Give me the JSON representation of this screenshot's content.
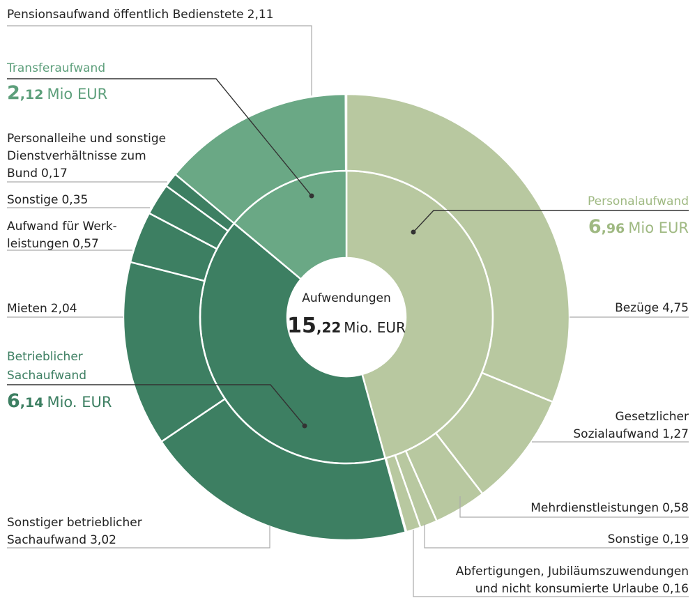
{
  "chart_data": {
    "type": "sunburst",
    "center_label": "Aufwendungen",
    "total": 15.22,
    "total_label": "15,22",
    "total_unit": "Mio. EUR",
    "groups": [
      {
        "name_lines": [
          "Personalaufwand"
        ],
        "value": 6.96,
        "value_label": "6,96",
        "unit": "Mio EUR",
        "color": "#b8c8a0",
        "label_color": "#9fb982",
        "children": [
          {
            "name_lines": [
              "Bezüge"
            ],
            "value": 4.75,
            "value_label": "4,75"
          },
          {
            "name_lines": [
              "Gesetzlicher",
              "Sozialaufwand"
            ],
            "value": 1.27,
            "value_label": "1,27"
          },
          {
            "name_lines": [
              "Mehrdienstleistungen"
            ],
            "value": 0.58,
            "value_label": "0,58"
          },
          {
            "name_lines": [
              "Sonstige"
            ],
            "value": 0.19,
            "value_label": "0,19"
          },
          {
            "name_lines": [
              "Abfertigungen, Jubiläumszuwendungen",
              "und nicht konsumierte Urlaube"
            ],
            "value": 0.16,
            "value_label": "0,16"
          }
        ]
      },
      {
        "name_lines": [
          "Betrieblicher",
          "Sachaufwand"
        ],
        "value": 6.14,
        "value_label": "6,14",
        "unit": "Mio. EUR",
        "color": "#3d7f62",
        "label_color": "#3d7f62",
        "children": [
          {
            "name_lines": [
              "Sonstiger betrieblicher",
              "Sachaufwand"
            ],
            "value": 3.02,
            "value_label": "3,02"
          },
          {
            "name_lines": [
              "Mieten"
            ],
            "value": 2.04,
            "value_label": "2,04"
          },
          {
            "name_lines": [
              "Aufwand für Werk-",
              "leistungen"
            ],
            "value": 0.57,
            "value_label": "0,57"
          },
          {
            "name_lines": [
              "Sonstige"
            ],
            "value": 0.35,
            "value_label": "0,35"
          },
          {
            "name_lines": [
              "Personalleihe und sonstige",
              "Dienstverhältnisse zum",
              "Bund"
            ],
            "value": 0.17,
            "value_label": "0,17"
          }
        ]
      },
      {
        "name_lines": [
          "Transferaufwand"
        ],
        "value": 2.12,
        "value_label": "2,12",
        "unit": "Mio EUR",
        "color": "#6aa885",
        "label_color": "#5d9f7b",
        "children": [
          {
            "name_lines": [
              "Pensionsaufwand öffentlich Bedienstete"
            ],
            "value": 2.11,
            "value_label": "2,11"
          }
        ]
      }
    ]
  }
}
